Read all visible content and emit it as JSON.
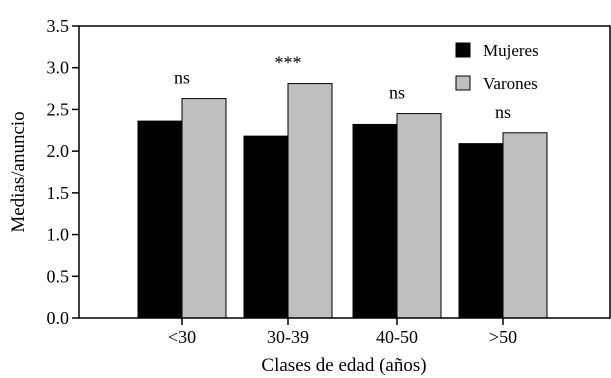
{
  "chart_data": {
    "type": "bar",
    "title": "",
    "xlabel": "Clases de edad (años)",
    "ylabel": "Medias/anuncio",
    "ylim": [
      0,
      3.5
    ],
    "yticks": [
      "0.0",
      "0.5",
      "1.0",
      "1.5",
      "2.0",
      "2.5",
      "3.0",
      "3.5"
    ],
    "categories": [
      "<30",
      "30-39",
      "40-50",
      ">50"
    ],
    "series": [
      {
        "name": "Mujeres",
        "color": "#000000",
        "values": [
          2.36,
          2.18,
          2.32,
          2.09
        ]
      },
      {
        "name": "Varones",
        "color": "#bfbfbf",
        "values": [
          2.63,
          2.81,
          2.45,
          2.22
        ]
      }
    ],
    "annotations": [
      "ns",
      "***",
      "ns",
      "ns"
    ],
    "legend": "top-right",
    "grid": false
  }
}
